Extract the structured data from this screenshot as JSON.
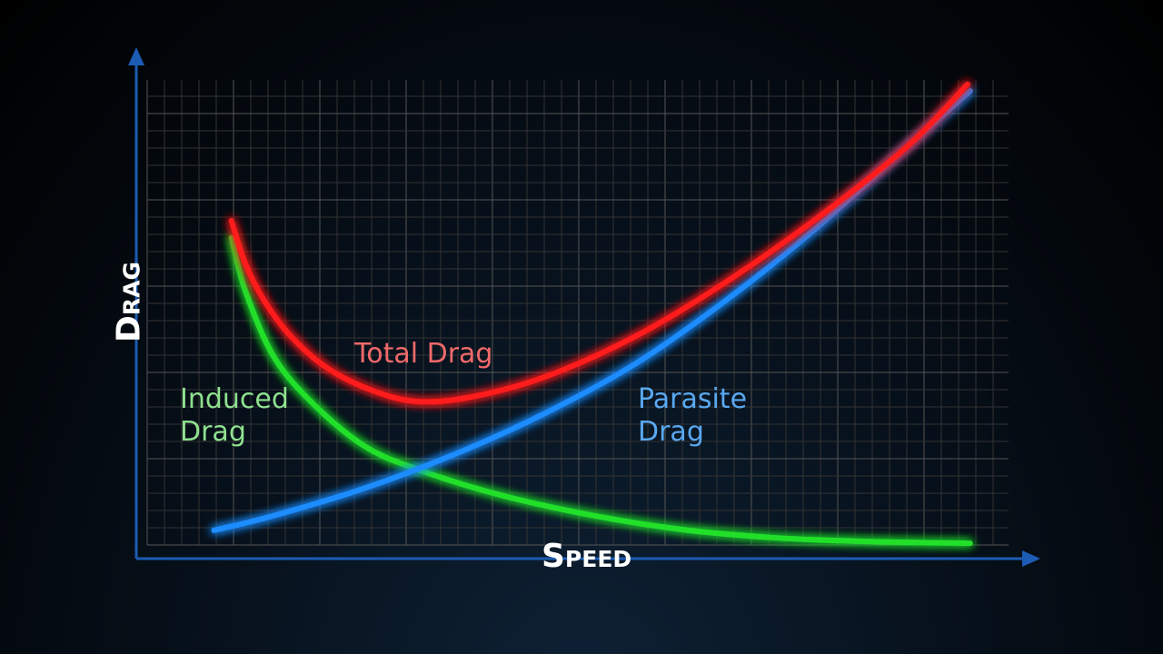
{
  "chart_data": {
    "type": "line",
    "x_label": "Speed",
    "y_label": "Drag",
    "xlim": [
      0,
      100
    ],
    "ylim": [
      0,
      100
    ],
    "grid": true,
    "series": [
      {
        "name": "Total Drag",
        "color": "#ff1a1a",
        "label_color": "#f06a6a",
        "x": [
          10.9,
          12.5,
          14.6,
          17.7,
          21.9,
          27.1,
          32.3,
          38.5,
          46.9,
          57.3,
          67.7,
          78.1,
          88.5,
          95.3
        ],
        "values": [
          70.6,
          61.7,
          54.1,
          46.5,
          39.8,
          35.1,
          32.8,
          33.8,
          38,
          46.5,
          57.9,
          71.2,
          86.3,
          99.1
        ]
      },
      {
        "name": "Induced Drag",
        "color": "#22e02a",
        "label_color": "#8fe08f",
        "x": [
          10.9,
          12.5,
          15.6,
          19.8,
          26,
          32.3,
          41.7,
          52.1,
          62.5,
          72.9,
          83.3,
          95.6
        ],
        "values": [
          67,
          56,
          42.7,
          33.2,
          23.7,
          18.6,
          13.3,
          9.1,
          6.1,
          4.4,
          3.6,
          3.2
        ]
      },
      {
        "name": "Parasite Drag",
        "color": "#1e8cff",
        "label_color": "#5aa8f0",
        "x": [
          8.9,
          15.6,
          26,
          36.5,
          46.9,
          57.3,
          67.7,
          78.1,
          88.5,
          95.6
        ],
        "values": [
          5.9,
          8.9,
          14.6,
          21.8,
          30.4,
          40.8,
          54.1,
          69.3,
          86.3,
          97.7
        ]
      }
    ]
  }
}
